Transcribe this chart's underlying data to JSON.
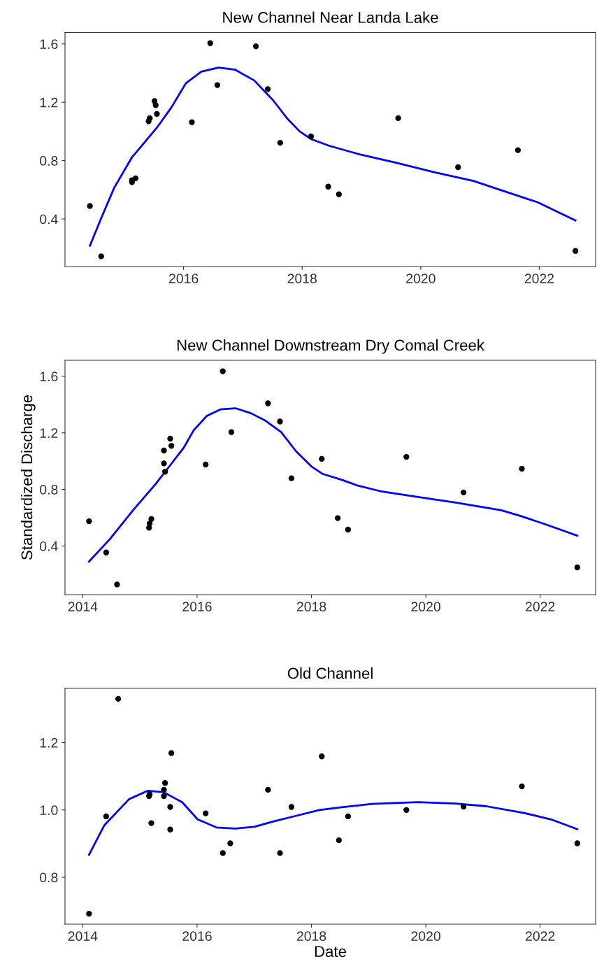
{
  "chart_data": [
    {
      "type": "scatter",
      "title": "New Channel Near Landa Lake",
      "xlim": [
        2014.0,
        2022.95
      ],
      "ylim": [
        0.074,
        1.678
      ],
      "xticks": [
        {
          "value": 2016,
          "label": "2016"
        },
        {
          "value": 2018,
          "label": "2018"
        },
        {
          "value": 2020,
          "label": "2020"
        },
        {
          "value": 2022,
          "label": "2022"
        }
      ],
      "yticks": [
        {
          "value": 0.4,
          "label": "0.4"
        },
        {
          "value": 0.8,
          "label": "0.8"
        },
        {
          "value": 1.2,
          "label": "1.2"
        },
        {
          "value": 1.6,
          "label": "1.6"
        }
      ],
      "grid": false,
      "series": [
        {
          "color": "#000000",
          "marker": "circle",
          "x": [
            2014.42,
            2014.61,
            2015.13,
            2015.13,
            2015.19,
            2015.41,
            2015.43,
            2015.51,
            2015.53,
            2015.55,
            2016.14,
            2016.45,
            2016.57,
            2017.22,
            2017.42,
            2017.63,
            2018.15,
            2018.44,
            2018.62,
            2019.62,
            2020.63,
            2021.64,
            2022.61
          ],
          "values": [
            0.489,
            0.144,
            0.653,
            0.666,
            0.679,
            1.07,
            1.091,
            1.208,
            1.18,
            1.12,
            1.063,
            1.605,
            1.318,
            1.584,
            1.29,
            0.922,
            0.966,
            0.622,
            0.569,
            1.091,
            0.755,
            0.872,
            0.181
          ]
        },
        {
          "type": "line",
          "color": "#0000ff",
          "line_style": "solid",
          "x": [
            2014.42,
            2014.61,
            2014.83,
            2015.13,
            2015.55,
            2015.79,
            2016.04,
            2016.3,
            2016.59,
            2016.87,
            2017.19,
            2017.51,
            2017.76,
            2017.96,
            2018.15,
            2018.46,
            2018.97,
            2019.61,
            2020.25,
            2020.89,
            2021.33,
            2021.97,
            2022.61
          ],
          "values": [
            0.217,
            0.405,
            0.614,
            0.823,
            1.026,
            1.162,
            1.331,
            1.41,
            1.438,
            1.423,
            1.35,
            1.214,
            1.083,
            1.0,
            0.948,
            0.901,
            0.843,
            0.783,
            0.718,
            0.661,
            0.601,
            0.515,
            0.39
          ]
        }
      ]
    },
    {
      "type": "scatter",
      "title": "New Channel Downstream Dry Comal Creek",
      "ylabel": "Standardized Discharge",
      "xlim": [
        2013.69,
        2022.97
      ],
      "ylim": [
        0.056,
        1.713
      ],
      "xticks": [
        {
          "value": 2014,
          "label": "2014"
        },
        {
          "value": 2016,
          "label": "2016"
        },
        {
          "value": 2018,
          "label": "2018"
        },
        {
          "value": 2020,
          "label": "2020"
        },
        {
          "value": 2022,
          "label": "2022"
        }
      ],
      "yticks": [
        {
          "value": 0.4,
          "label": "0.4"
        },
        {
          "value": 0.8,
          "label": "0.8"
        },
        {
          "value": 1.2,
          "label": "1.2"
        },
        {
          "value": 1.6,
          "label": "1.6"
        }
      ],
      "grid": false,
      "series": [
        {
          "color": "#000000",
          "marker": "circle",
          "x": [
            2014.11,
            2014.41,
            2014.6,
            2015.16,
            2015.17,
            2015.2,
            2015.42,
            2015.42,
            2015.44,
            2015.53,
            2015.55,
            2016.15,
            2016.45,
            2016.6,
            2017.24,
            2017.45,
            2017.65,
            2018.18,
            2018.46,
            2018.64,
            2019.66,
            2020.66,
            2021.68,
            2022.65
          ],
          "values": [
            0.575,
            0.354,
            0.128,
            0.529,
            0.559,
            0.591,
            1.075,
            0.984,
            0.925,
            1.159,
            1.108,
            0.976,
            1.635,
            1.205,
            1.409,
            1.28,
            0.879,
            1.016,
            0.597,
            0.516,
            1.03,
            0.779,
            0.946,
            0.249
          ]
        },
        {
          "type": "line",
          "color": "#0000ff",
          "line_style": "solid",
          "x": [
            2014.11,
            2014.48,
            2014.88,
            2015.28,
            2015.54,
            2015.77,
            2015.94,
            2016.17,
            2016.41,
            2016.67,
            2016.94,
            2017.2,
            2017.47,
            2017.73,
            2018.0,
            2018.2,
            2018.53,
            2018.8,
            2019.2,
            2019.86,
            2020.52,
            2021.32,
            2021.65,
            2022.05,
            2022.65
          ],
          "values": [
            0.29,
            0.451,
            0.653,
            0.841,
            0.976,
            1.097,
            1.218,
            1.32,
            1.366,
            1.374,
            1.339,
            1.285,
            1.205,
            1.07,
            0.962,
            0.909,
            0.868,
            0.828,
            0.788,
            0.747,
            0.707,
            0.653,
            0.613,
            0.559,
            0.473
          ]
        }
      ]
    },
    {
      "type": "scatter",
      "title": "Old Channel",
      "xlabel": "Date",
      "xlim": [
        2013.69,
        2022.97
      ],
      "ylim": [
        0.661,
        1.361
      ],
      "xticks": [
        {
          "value": 2014,
          "label": "2014"
        },
        {
          "value": 2016,
          "label": "2016"
        },
        {
          "value": 2018,
          "label": "2018"
        },
        {
          "value": 2020,
          "label": "2020"
        },
        {
          "value": 2022,
          "label": "2022"
        }
      ],
      "yticks": [
        {
          "value": 0.8,
          "label": "0.8"
        },
        {
          "value": 1.0,
          "label": "1.0"
        },
        {
          "value": 1.2,
          "label": "1.2"
        }
      ],
      "grid": false,
      "series": [
        {
          "color": "#000000",
          "marker": "circle",
          "x": [
            2014.11,
            2014.41,
            2014.62,
            2015.16,
            2015.17,
            2015.2,
            2015.42,
            2015.44,
            2015.42,
            2015.53,
            2015.53,
            2015.55,
            2016.15,
            2016.45,
            2016.58,
            2017.24,
            2017.45,
            2017.65,
            2018.18,
            2018.48,
            2018.64,
            2019.66,
            2020.66,
            2021.68,
            2022.65
          ],
          "values": [
            0.692,
            0.981,
            1.33,
            1.041,
            1.047,
            0.961,
            1.06,
            1.08,
            1.041,
            1.009,
            0.942,
            1.169,
            0.99,
            0.872,
            0.901,
            1.06,
            0.872,
            1.009,
            1.159,
            0.91,
            0.981,
            1.0,
            1.01,
            1.07,
            0.901
          ]
        },
        {
          "type": "line",
          "color": "#0000ff",
          "line_style": "solid",
          "x": [
            2014.11,
            2014.38,
            2014.81,
            2015.14,
            2015.41,
            2015.74,
            2016.01,
            2016.34,
            2016.67,
            2017.0,
            2017.34,
            2017.74,
            2018.14,
            2018.53,
            2019.06,
            2019.86,
            2020.52,
            2021.06,
            2021.72,
            2022.19,
            2022.65
          ],
          "values": [
            0.867,
            0.955,
            1.032,
            1.057,
            1.053,
            1.023,
            0.972,
            0.948,
            0.945,
            0.95,
            0.966,
            0.983,
            1.0,
            1.008,
            1.018,
            1.023,
            1.019,
            1.011,
            0.991,
            0.972,
            0.943
          ]
        }
      ]
    }
  ]
}
